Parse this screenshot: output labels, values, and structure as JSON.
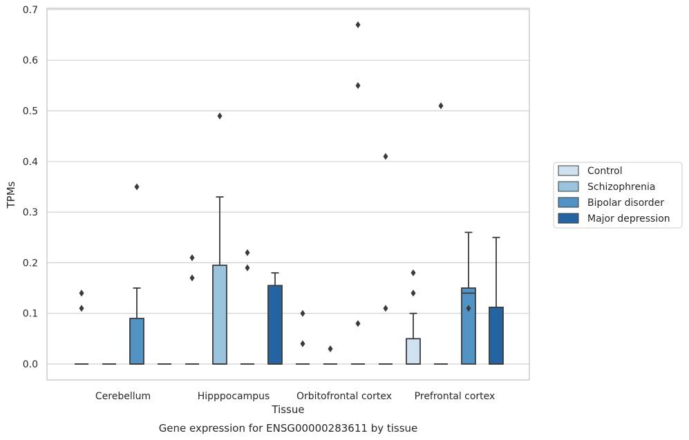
{
  "chart_data": {
    "type": "box",
    "xlabel": "Tissue",
    "ylabel": "TPMs",
    "caption": "Gene expression for ENSG00000283611 by tissue",
    "categories": [
      "Cerebellum",
      "Hipppocampus",
      "Orbitofrontal cortex",
      "Prefrontal cortex"
    ],
    "ylim": [
      -0.032,
      0.705
    ],
    "yticks": [
      0.0,
      0.1,
      0.2,
      0.3,
      0.4,
      0.5,
      0.6,
      0.7
    ],
    "ytick_labels": [
      "0.0",
      "0.1",
      "0.2",
      "0.3",
      "0.4",
      "0.5",
      "0.6",
      "0.7"
    ],
    "grid": "horizontal",
    "legend_position": "right",
    "series": [
      {
        "name": "Control",
        "color": "#d0e1f2",
        "boxes": [
          {
            "q1": 0,
            "median": 0,
            "q3": 0,
            "whisker_low": 0,
            "whisker_high": 0,
            "outliers": [
              0.14,
              0.11
            ]
          },
          {
            "q1": 0,
            "median": 0,
            "q3": 0,
            "whisker_low": 0,
            "whisker_high": 0,
            "outliers": [
              0.21,
              0.17
            ]
          },
          {
            "q1": 0,
            "median": 0,
            "q3": 0,
            "whisker_low": 0,
            "whisker_high": 0,
            "outliers": [
              0.1,
              0.04
            ]
          },
          {
            "q1": 0,
            "median": 0,
            "q3": 0.05,
            "whisker_low": 0,
            "whisker_high": 0.1,
            "outliers": [
              0.18,
              0.14
            ]
          }
        ]
      },
      {
        "name": "Schizophrenia",
        "color": "#9ac3dd",
        "boxes": [
          {
            "q1": 0,
            "median": 0,
            "q3": 0,
            "whisker_low": 0,
            "whisker_high": 0,
            "outliers": []
          },
          {
            "q1": 0,
            "median": 0,
            "q3": 0.195,
            "whisker_low": 0,
            "whisker_high": 0.33,
            "outliers": [
              0.49
            ]
          },
          {
            "q1": 0,
            "median": 0,
            "q3": 0,
            "whisker_low": 0,
            "whisker_high": 0,
            "outliers": [
              0.03
            ]
          },
          {
            "q1": 0,
            "median": 0,
            "q3": 0,
            "whisker_low": 0,
            "whisker_high": 0,
            "outliers": [
              0.51
            ]
          }
        ]
      },
      {
        "name": "Bipolar disorder",
        "color": "#5193c4",
        "boxes": [
          {
            "q1": 0,
            "median": 0,
            "q3": 0.09,
            "whisker_low": 0,
            "whisker_high": 0.15,
            "outliers": [
              0.35
            ]
          },
          {
            "q1": 0,
            "median": 0,
            "q3": 0,
            "whisker_low": 0,
            "whisker_high": 0,
            "outliers": [
              0.22,
              0.19
            ]
          },
          {
            "q1": 0,
            "median": 0,
            "q3": 0,
            "whisker_low": 0,
            "whisker_high": 0,
            "outliers": [
              0.67,
              0.55,
              0.08
            ]
          },
          {
            "q1": 0,
            "median": 0.14,
            "q3": 0.15,
            "whisker_low": 0,
            "whisker_high": 0.26,
            "outliers": [
              0.11
            ]
          }
        ]
      },
      {
        "name": "Major depression",
        "color": "#2564a2",
        "boxes": [
          {
            "q1": 0,
            "median": 0,
            "q3": 0,
            "whisker_low": 0,
            "whisker_high": 0,
            "outliers": []
          },
          {
            "q1": 0,
            "median": 0,
            "q3": 0.155,
            "whisker_low": 0,
            "whisker_high": 0.18,
            "outliers": []
          },
          {
            "q1": 0,
            "median": 0,
            "q3": 0,
            "whisker_low": 0,
            "whisker_high": 0,
            "outliers": [
              0.41,
              0.11
            ]
          },
          {
            "q1": 0,
            "median": 0,
            "q3": 0.112,
            "whisker_low": 0,
            "whisker_high": 0.25,
            "outliers": []
          }
        ]
      }
    ]
  }
}
